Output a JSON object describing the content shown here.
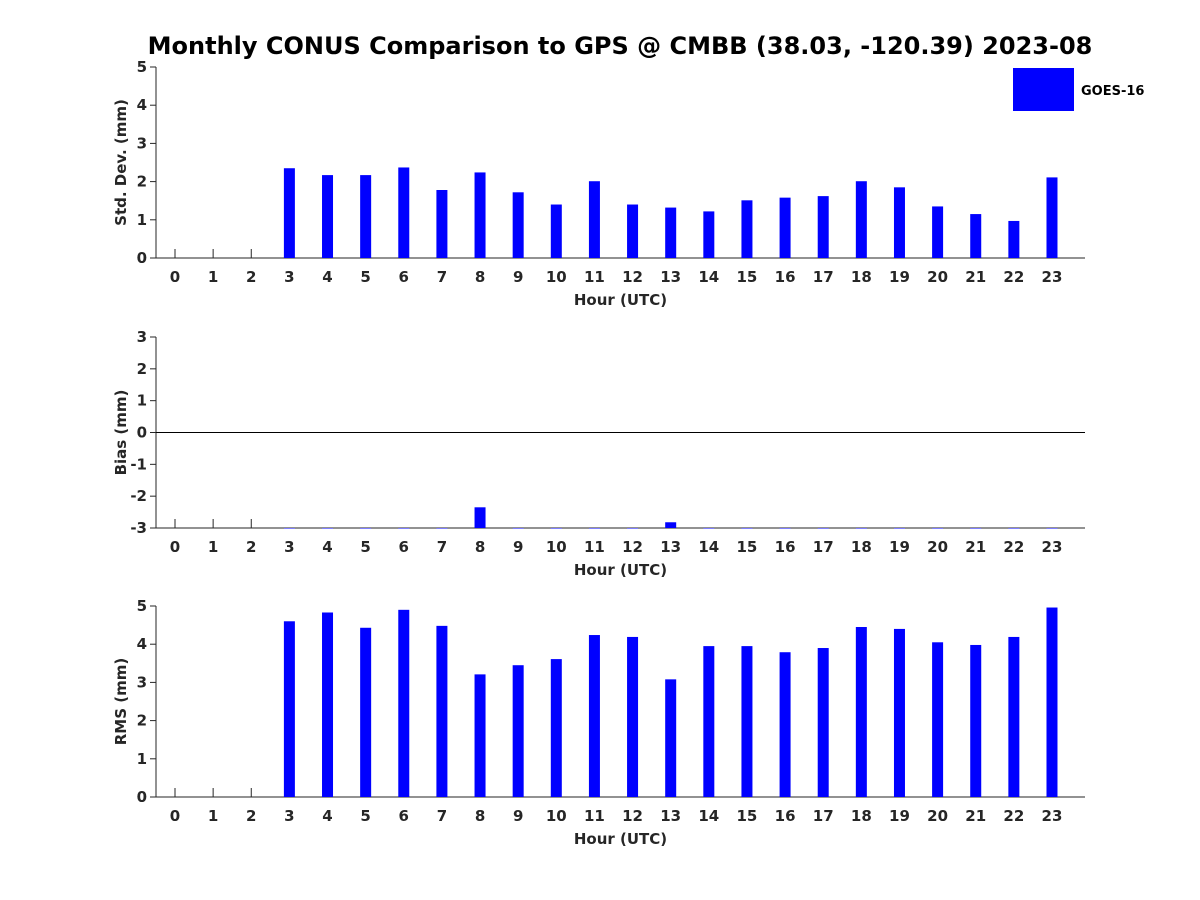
{
  "title": "Monthly CONUS Comparison to GPS @ CMBB (38.03, -120.39) 2023-08",
  "legend": {
    "label": "GOES-16",
    "color": "#0000ff",
    "placement": "top-right"
  },
  "chart_data": [
    {
      "type": "bar",
      "title": "Monthly CONUS Comparison to GPS @ CMBB (38.03, -120.39) 2023-08",
      "xlabel": "Hour (UTC)",
      "ylabel": "Std. Dev. (mm)",
      "ylim": [
        0,
        5
      ],
      "yticks": [
        0,
        1,
        2,
        3,
        4,
        5
      ],
      "categories": [
        "0",
        "1",
        "2",
        "3",
        "4",
        "5",
        "6",
        "7",
        "8",
        "9",
        "10",
        "11",
        "12",
        "13",
        "14",
        "15",
        "16",
        "17",
        "18",
        "19",
        "20",
        "21",
        "22",
        "23"
      ],
      "series": [
        {
          "name": "GOES-16",
          "color": "#0000ff",
          "values": [
            null,
            null,
            null,
            2.35,
            2.17,
            2.17,
            2.37,
            1.78,
            2.24,
            1.72,
            1.4,
            2.01,
            1.4,
            1.32,
            1.22,
            1.51,
            1.58,
            1.62,
            2.01,
            1.85,
            1.35,
            1.15,
            0.97,
            2.11
          ]
        }
      ]
    },
    {
      "type": "bar",
      "xlabel": "Hour (UTC)",
      "ylabel": "Bias (mm)",
      "ylim": [
        -3,
        3
      ],
      "yticks": [
        -3,
        -2,
        -1,
        0,
        1,
        2,
        3
      ],
      "categories": [
        "0",
        "1",
        "2",
        "3",
        "4",
        "5",
        "6",
        "7",
        "8",
        "9",
        "10",
        "11",
        "12",
        "13",
        "14",
        "15",
        "16",
        "17",
        "18",
        "19",
        "20",
        "21",
        "22",
        "23"
      ],
      "series": [
        {
          "name": "GOES-16",
          "color": "#0000ff",
          "values": [
            null,
            null,
            null,
            -3.0,
            -3.0,
            -3.0,
            -3.0,
            -3.0,
            -2.35,
            -3.0,
            -3.0,
            -3.0,
            -3.0,
            -2.82,
            -3.0,
            -3.0,
            -3.0,
            -3.0,
            -3.0,
            -3.0,
            -3.0,
            -3.0,
            -3.0,
            -3.0
          ]
        }
      ]
    },
    {
      "type": "bar",
      "xlabel": "Hour (UTC)",
      "ylabel": "RMS (mm)",
      "ylim": [
        0,
        5
      ],
      "yticks": [
        0,
        1,
        2,
        3,
        4,
        5
      ],
      "categories": [
        "0",
        "1",
        "2",
        "3",
        "4",
        "5",
        "6",
        "7",
        "8",
        "9",
        "10",
        "11",
        "12",
        "13",
        "14",
        "15",
        "16",
        "17",
        "18",
        "19",
        "20",
        "21",
        "22",
        "23"
      ],
      "series": [
        {
          "name": "GOES-16",
          "color": "#0000ff",
          "values": [
            null,
            null,
            null,
            4.6,
            4.83,
            4.43,
            4.9,
            4.48,
            3.21,
            3.45,
            3.61,
            4.24,
            4.19,
            3.08,
            3.95,
            3.95,
            3.79,
            3.9,
            4.45,
            4.4,
            4.05,
            3.98,
            4.19,
            4.96
          ]
        }
      ]
    }
  ]
}
